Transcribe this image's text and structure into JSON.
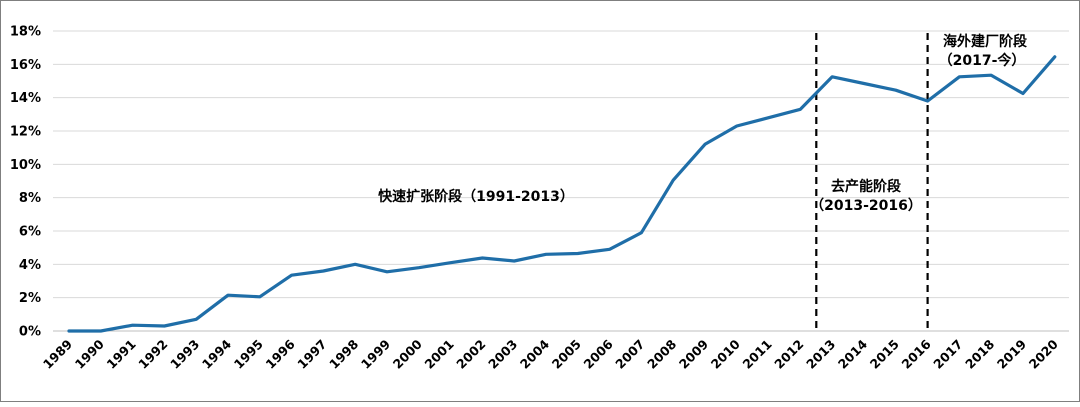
{
  "chart_data": {
    "type": "line",
    "title": "",
    "xlabel": "",
    "ylabel": "",
    "ylim": [
      0,
      18
    ],
    "grid": true,
    "colors": {
      "line": "#1f6ea8",
      "grid": "#d9d9d9",
      "divider": "#000000"
    },
    "y_ticks": [
      "0%",
      "2%",
      "4%",
      "6%",
      "8%",
      "10%",
      "12%",
      "14%",
      "16%",
      "18%"
    ],
    "x": [
      "1989",
      "1990",
      "1991",
      "1992",
      "1993",
      "1994",
      "1995",
      "1996",
      "1997",
      "1998",
      "1999",
      "2000",
      "2001",
      "2002",
      "2003",
      "2004",
      "2005",
      "2006",
      "2007",
      "2008",
      "2009",
      "2010",
      "2011",
      "2012",
      "2013",
      "2014",
      "2015",
      "2016",
      "2017",
      "2018",
      "2019",
      "2020"
    ],
    "series": [
      {
        "values": [
          0.0,
          0.0,
          0.35,
          0.3,
          0.7,
          2.15,
          2.05,
          3.35,
          3.6,
          4.0,
          3.55,
          3.8,
          4.1,
          4.38,
          4.2,
          4.6,
          4.65,
          4.9,
          5.9,
          9.05,
          11.2,
          12.3,
          12.8,
          13.3,
          15.25,
          14.85,
          14.45,
          13.8,
          15.25,
          15.35,
          14.25,
          16.45
        ]
      }
    ],
    "dividers": [
      "2012.5",
      "2016"
    ],
    "annotations": {
      "phase1": "快速扩张阶段（1991-2013）",
      "phase2_line1": "去产能阶段",
      "phase2_line2": "（2013-2016）",
      "phase3_line1": "海外建厂阶段",
      "phase3_line2": "（2017-今）"
    }
  }
}
